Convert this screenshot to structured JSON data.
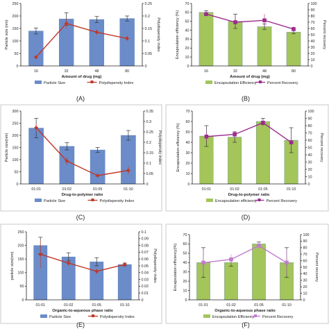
{
  "chart_data": [
    {
      "type": "bar",
      "panel_label": "(A)",
      "categories": [
        "16",
        "32",
        "48",
        "80"
      ],
      "xlabel": "Amount of drug (mg)",
      "ylabel": "Particle size (nm)",
      "y2label": "Polydispersity index",
      "ylim": [
        0,
        250
      ],
      "yticks": [
        "0",
        "50",
        "100",
        "150",
        "200",
        "250"
      ],
      "y2lim": [
        0,
        0.25
      ],
      "y2ticks": [
        "0",
        "0.05",
        "0.1",
        "0.15",
        "0.2",
        "0.25"
      ],
      "bar_series": {
        "name": "Particle Size",
        "values": [
          140,
          188,
          186,
          190
        ],
        "errors": [
          12,
          25,
          12,
          10
        ],
        "color": "#6b8cc9"
      },
      "line_series": {
        "name": "Polydispersity Index",
        "values": [
          0.035,
          0.17,
          0.135,
          0.11
        ],
        "errors": [
          0.005,
          0.02,
          0.01,
          0.01
        ],
        "color": "#c0392b"
      }
    },
    {
      "type": "bar",
      "panel_label": "(B)",
      "categories": [
        "16",
        "32",
        "48",
        "80"
      ],
      "xlabel": "Amount of drug (mg)",
      "ylabel": "Encapsulation efficiency (%)",
      "y2label": "Percent recovery",
      "ylim": [
        0,
        70
      ],
      "yticks": [
        "0",
        "10",
        "20",
        "30",
        "40",
        "50",
        "60",
        "70"
      ],
      "y2lim": [
        0,
        100
      ],
      "y2ticks": [
        "0",
        "10",
        "20",
        "30",
        "40",
        "50",
        "60",
        "70",
        "80",
        "90",
        "100"
      ],
      "bar_series": {
        "name": "Encapsulation Efficiency",
        "values": [
          60,
          50,
          44,
          38
        ],
        "errors": [
          2,
          8,
          3,
          2
        ],
        "color": "#a3c55a"
      },
      "line_series": {
        "name": "Percent Recovery",
        "values": [
          83,
          70,
          73,
          59
        ],
        "errors": [
          3,
          10,
          10,
          4
        ],
        "color": "#9b2d8e"
      }
    },
    {
      "type": "bar",
      "panel_label": "(C)",
      "categories": [
        "01:01",
        "01:02",
        "01:05",
        "01:10"
      ],
      "xlabel": "Drug-to-polymer ratio",
      "ylabel": "Particle size(nm)",
      "y2label": "Polydispersity index",
      "ylim": [
        0,
        300
      ],
      "yticks": [
        "0",
        "50",
        "100",
        "150",
        "200",
        "250",
        "300"
      ],
      "y2lim": [
        0,
        0.35
      ],
      "y2ticks": [
        "0",
        "0.05",
        "0.1",
        "0.15",
        "0.2",
        "0.25",
        "0.3",
        "0.35"
      ],
      "bar_series": {
        "name": "Particle Size",
        "values": [
          230,
          155,
          140,
          200
        ],
        "errors": [
          40,
          15,
          10,
          20
        ],
        "color": "#6b8cc9"
      },
      "line_series": {
        "name": "Polydispersity Index",
        "values": [
          0.27,
          0.11,
          0.04,
          0.065
        ],
        "errors": [
          0.02,
          0.02,
          0.005,
          0.02
        ],
        "color": "#c0392b"
      }
    },
    {
      "type": "bar",
      "panel_label": "(D)",
      "categories": [
        "01:01",
        "01:02",
        "01:05",
        "01:10"
      ],
      "xlabel": "Drug-to-polymer ratio",
      "ylabel": "Encapsulation efficiency (%)",
      "y2label": "Percent recovery",
      "ylim": [
        0,
        70
      ],
      "yticks": [
        "0",
        "10",
        "20",
        "30",
        "40",
        "50",
        "60",
        "70"
      ],
      "y2lim": [
        0,
        100
      ],
      "y2ticks": [
        "0",
        "10",
        "20",
        "30",
        "40",
        "50",
        "60",
        "70",
        "80",
        "90",
        "100"
      ],
      "bar_series": {
        "name": "Encapsulation efficiency",
        "values": [
          46,
          45,
          60,
          42
        ],
        "errors": [
          10,
          5,
          3,
          12
        ],
        "color": "#a3c55a"
      },
      "line_series": {
        "name": "Percent Recovery",
        "values": [
          65,
          68,
          84,
          57
        ],
        "errors": [
          8,
          5,
          5,
          8
        ],
        "color": "#9b2d8e"
      }
    },
    {
      "type": "bar",
      "panel_label": "(E)",
      "categories": [
        "01:01",
        "01:02",
        "01:05",
        "01:10"
      ],
      "xlabel": "Organic-to-aqueous phase ratio",
      "ylabel": "particle size(nm)",
      "y2label": "Polydispersity index",
      "ylim": [
        0,
        250
      ],
      "yticks": [
        "0",
        "50",
        "100",
        "150",
        "200",
        "250"
      ],
      "y2lim": [
        0,
        0.1
      ],
      "y2ticks": [
        "0",
        "0.01",
        "0.02",
        "0.03",
        "0.04",
        "0.05",
        "0.06",
        "0.07",
        "0.08",
        "0.09",
        "0.1"
      ],
      "bar_series": {
        "name": "Particle Size",
        "values": [
          200,
          158,
          140,
          130
        ],
        "errors": [
          30,
          15,
          15,
          5
        ],
        "color": "#6b8cc9"
      },
      "line_series": {
        "name": "Polydispersity Index",
        "values": [
          0.067,
          0.054,
          0.042,
          0.052
        ],
        "errors": [
          0.02,
          0.004,
          0.004,
          0.004
        ],
        "color": "#c0392b"
      }
    },
    {
      "type": "bar",
      "panel_label": "(F)",
      "categories": [
        "01:01",
        "01:02",
        "01:05",
        "01:10"
      ],
      "xlabel": "Organic-to-aqueous phase ratio",
      "ylabel": "Encapsulation efficiency(%)",
      "y2label": "Percent recovery",
      "ylim": [
        0,
        70
      ],
      "yticks": [
        "0",
        "10",
        "20",
        "30",
        "40",
        "50",
        "60",
        "70"
      ],
      "y2lim": [
        0,
        100
      ],
      "y2ticks": [
        "0",
        "10",
        "20",
        "30",
        "40",
        "50",
        "60",
        "70",
        "80",
        "90",
        "100"
      ],
      "bar_series": {
        "name": "Encapsulation Efficiency",
        "values": [
          40,
          40,
          60,
          40
        ],
        "errors": [
          16,
          4,
          2,
          16
        ],
        "color": "#a3c55a"
      },
      "line_series": {
        "name": "Percent Recovery",
        "values": [
          57,
          62,
          83,
          57
        ],
        "errors": [
          20,
          8,
          5,
          20
        ],
        "color": "#c27bcf"
      }
    }
  ]
}
